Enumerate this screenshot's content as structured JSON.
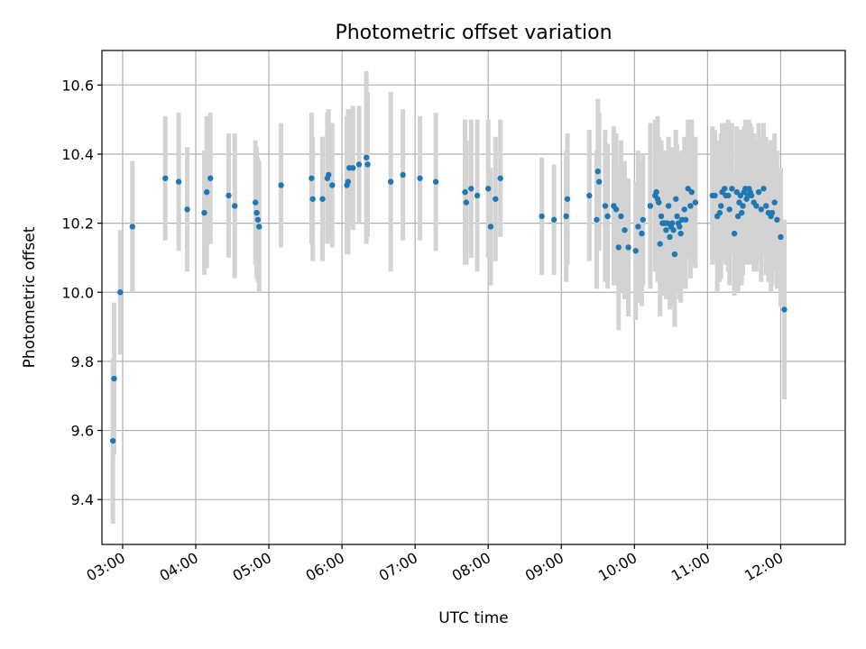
{
  "chart_data": {
    "type": "scatter",
    "title": "Photometric offset variation",
    "xlabel": "UTC time",
    "ylabel": "Photometric offset",
    "xlim": [
      "02:43",
      "12:53"
    ],
    "ylim": [
      9.27,
      10.7
    ],
    "grid": true,
    "x_ticks": [
      "03:00",
      "04:00",
      "05:00",
      "06:00",
      "07:00",
      "08:00",
      "09:00",
      "10:00",
      "11:00",
      "12:00"
    ],
    "y_ticks": [
      9.4,
      9.6,
      9.8,
      10.0,
      10.2,
      10.4,
      10.6
    ],
    "colors": {
      "point": "#1f77b4",
      "errorbar": "#d3d3d3"
    },
    "series": [
      {
        "x": [
          "02:52",
          "02:53",
          "02:58",
          "03:08",
          "03:35",
          "03:46",
          "03:53",
          "04:07",
          "04:09",
          "04:12",
          "04:27",
          "04:32",
          "04:49",
          "04:50",
          "04:51",
          "04:52",
          "05:10",
          "05:35",
          "05:36",
          "05:44",
          "05:48",
          "05:49",
          "05:52",
          "06:04",
          "06:05",
          "06:06",
          "06:09",
          "06:14",
          "06:20",
          "06:21",
          "06:40",
          "06:50",
          "07:04",
          "07:17",
          "07:41",
          "07:42",
          "07:46",
          "07:51",
          "08:00",
          "08:02",
          "08:06",
          "08:10",
          "08:44",
          "08:54",
          "09:04",
          "09:05",
          "09:23",
          "09:29",
          "09:30",
          "09:31",
          "09:36",
          "09:38",
          "09:43",
          "09:45",
          "09:47",
          "09:49",
          "09:52",
          "09:55",
          "10:01",
          "10:03",
          "10:06",
          "10:07",
          "10:13",
          "10:17",
          "10:18",
          "10:19",
          "10:20",
          "10:21",
          "10:22",
          "10:23",
          "10:24",
          "10:25",
          "10:26",
          "10:27",
          "10:28",
          "10:29",
          "10:30",
          "10:31",
          "10:32",
          "10:33",
          "10:34",
          "10:35",
          "10:36",
          "10:37",
          "10:38",
          "10:39",
          "10:41",
          "10:42",
          "10:44",
          "10:46",
          "10:47",
          "10:50",
          "11:04",
          "11:06",
          "11:08",
          "11:10",
          "11:11",
          "11:12",
          "11:14",
          "11:15",
          "11:17",
          "11:18",
          "11:20",
          "11:22",
          "11:24",
          "11:25",
          "11:26",
          "11:27",
          "11:28",
          "11:29",
          "11:30",
          "11:31",
          "11:32",
          "11:33",
          "11:34",
          "11:35",
          "11:36",
          "11:38",
          "11:40",
          "11:42",
          "11:44",
          "11:46",
          "11:48",
          "11:50",
          "11:52",
          "11:53",
          "11:55",
          "11:57",
          "12:00"
        ],
        "y": [
          9.57,
          9.75,
          10.0,
          10.19,
          10.33,
          10.32,
          10.24,
          10.23,
          10.29,
          10.33,
          10.28,
          10.25,
          10.26,
          10.23,
          10.21,
          10.19,
          10.31,
          10.33,
          10.27,
          10.27,
          10.33,
          10.34,
          10.31,
          10.31,
          10.32,
          10.36,
          10.36,
          10.37,
          10.39,
          10.37,
          10.32,
          10.34,
          10.33,
          10.32,
          10.29,
          10.26,
          10.3,
          10.28,
          10.3,
          10.19,
          10.27,
          10.33,
          10.22,
          10.21,
          10.22,
          10.27,
          10.28,
          10.21,
          10.35,
          10.32,
          10.25,
          10.22,
          10.25,
          10.24,
          10.13,
          10.22,
          10.18,
          10.13,
          10.12,
          10.19,
          10.17,
          10.21,
          10.25,
          10.28,
          10.29,
          10.27,
          10.26,
          10.14,
          10.22,
          10.2,
          10.2,
          10.2,
          10.18,
          10.2,
          10.25,
          10.16,
          10.19,
          10.2,
          10.18,
          10.11,
          10.27,
          10.22,
          10.2,
          10.19,
          10.17,
          10.21,
          10.24,
          10.21,
          10.3,
          10.25,
          10.29,
          10.26,
          10.28,
          10.28,
          10.22,
          10.23,
          10.25,
          10.29,
          10.3,
          10.28,
          10.28,
          10.24,
          10.3,
          10.17,
          10.29,
          10.22,
          10.26,
          10.28,
          10.23,
          10.25,
          10.29,
          10.3,
          10.27,
          10.28,
          10.3,
          10.29,
          10.28,
          10.26,
          10.25,
          10.29,
          10.24,
          10.3,
          10.25,
          10.23,
          10.22,
          10.23,
          10.26,
          10.21,
          10.16
        ],
        "yerr": [
          0.24,
          0.22,
          0.18,
          0.19,
          0.18,
          0.2,
          0.18,
          0.18,
          0.22,
          0.19,
          0.18,
          0.21,
          0.18,
          0.19,
          0.18,
          0.19,
          0.18,
          0.19,
          0.18,
          0.18,
          0.19,
          0.19,
          0.18,
          0.2,
          0.21,
          0.17,
          0.18,
          0.17,
          0.25,
          0.21,
          0.26,
          0.19,
          0.18,
          0.2,
          0.21,
          0.18,
          0.2,
          0.22,
          0.2,
          0.17,
          0.18,
          0.17,
          0.17,
          0.16,
          0.19,
          0.19,
          0.19,
          0.2,
          0.21,
          0.2,
          0.22,
          0.21,
          0.23,
          0.22,
          0.24,
          0.22,
          0.2,
          0.2,
          0.2,
          0.22,
          0.21,
          0.19,
          0.24,
          0.22,
          0.2,
          0.24,
          0.19,
          0.21,
          0.22,
          0.2,
          0.21,
          0.21,
          0.2,
          0.21,
          0.2,
          0.21,
          0.2,
          0.22,
          0.22,
          0.21,
          0.2,
          0.21,
          0.2,
          0.21,
          0.2,
          0.2,
          0.21,
          0.2,
          0.2,
          0.21,
          0.21,
          0.19,
          0.2,
          0.19,
          0.22,
          0.2,
          0.21,
          0.2,
          0.19,
          0.2,
          0.22,
          0.22,
          0.19,
          0.18,
          0.19,
          0.22,
          0.2,
          0.19,
          0.21,
          0.2,
          0.19,
          0.2,
          0.19,
          0.2,
          0.2,
          0.2,
          0.2,
          0.2,
          0.19,
          0.2,
          0.21,
          0.19,
          0.2,
          0.2,
          0.22,
          0.21,
          0.2,
          0.2,
          0.2
        ]
      },
      {
        "x": [
          "12:03"
        ],
        "y": [
          9.95
        ],
        "yerr": [
          0.26
        ]
      }
    ]
  }
}
